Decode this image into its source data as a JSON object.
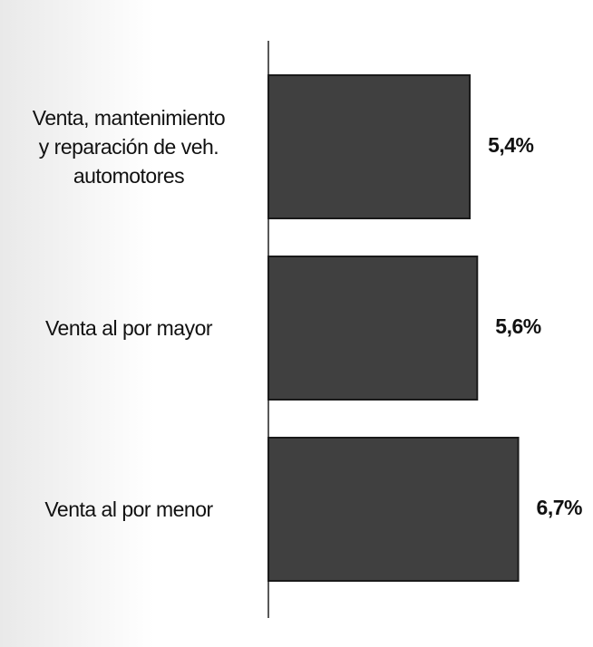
{
  "chart_data": {
    "type": "hbar",
    "categories": [
      "Venta, mantenimiento\ny reparación de veh.\nautomotores",
      "Venta al por mayor",
      "Venta al por menor"
    ],
    "values": [
      5.4,
      5.6,
      6.7
    ],
    "value_labels": [
      "5,4%",
      "5,6%",
      "6,7%"
    ],
    "color": "#404040",
    "xlim": [
      0,
      8
    ]
  }
}
